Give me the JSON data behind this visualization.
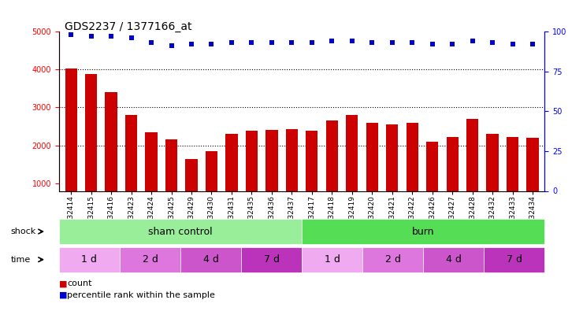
{
  "title": "GDS2237 / 1377166_at",
  "samples": [
    "GSM32414",
    "GSM32415",
    "GSM32416",
    "GSM32423",
    "GSM32424",
    "GSM32425",
    "GSM32429",
    "GSM32430",
    "GSM32431",
    "GSM32435",
    "GSM32436",
    "GSM32437",
    "GSM32417",
    "GSM32418",
    "GSM32419",
    "GSM32420",
    "GSM32421",
    "GSM32422",
    "GSM32426",
    "GSM32427",
    "GSM32428",
    "GSM32432",
    "GSM32433",
    "GSM32434"
  ],
  "counts": [
    4020,
    3890,
    3410,
    2800,
    2350,
    2150,
    1650,
    1850,
    2300,
    2380,
    2400,
    2420,
    2380,
    2650,
    2800,
    2600,
    2550,
    2600,
    2100,
    2220,
    2700,
    2300,
    2220,
    2200
  ],
  "percentile": [
    98,
    97,
    97,
    96,
    93,
    91,
    92,
    92,
    93,
    93,
    93,
    93,
    93,
    94,
    94,
    93,
    93,
    93,
    92,
    92,
    94,
    93,
    92,
    92
  ],
  "bar_color": "#cc0000",
  "dot_color": "#0000cc",
  "ylim_left": [
    800,
    5000
  ],
  "ylim_right": [
    0,
    100
  ],
  "yticks_left": [
    1000,
    2000,
    3000,
    4000,
    5000
  ],
  "yticks_right": [
    0,
    25,
    50,
    75,
    100
  ],
  "shock_groups": [
    {
      "label": "sham control",
      "start": 0,
      "end": 12,
      "color": "#99ee99"
    },
    {
      "label": "burn",
      "start": 12,
      "end": 24,
      "color": "#55dd55"
    }
  ],
  "time_groups": [
    {
      "label": "1 d",
      "start": 0,
      "end": 3,
      "color": "#f0aaf0"
    },
    {
      "label": "2 d",
      "start": 3,
      "end": 6,
      "color": "#dd77dd"
    },
    {
      "label": "4 d",
      "start": 6,
      "end": 9,
      "color": "#cc55cc"
    },
    {
      "label": "7 d",
      "start": 9,
      "end": 12,
      "color": "#bb33bb"
    },
    {
      "label": "1 d",
      "start": 12,
      "end": 15,
      "color": "#f0aaf0"
    },
    {
      "label": "2 d",
      "start": 15,
      "end": 18,
      "color": "#dd77dd"
    },
    {
      "label": "4 d",
      "start": 18,
      "end": 21,
      "color": "#cc55cc"
    },
    {
      "label": "7 d",
      "start": 21,
      "end": 24,
      "color": "#bb33bb"
    }
  ],
  "shock_row_label": "shock",
  "time_row_label": "time",
  "legend_count_label": "count",
  "legend_pct_label": "percentile rank within the sample",
  "background_color": "#ffffff",
  "grid_color": "#888888",
  "title_fontsize": 10,
  "tick_fontsize": 7,
  "label_fontsize": 9
}
